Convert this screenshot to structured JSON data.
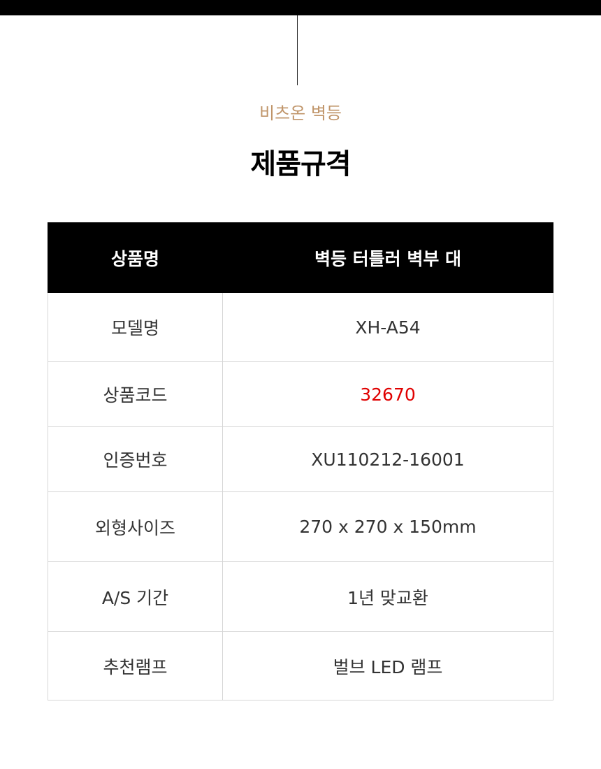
{
  "header": {
    "subtitle": "비츠온 벽등",
    "title": "제품규격"
  },
  "spec_table": {
    "header": {
      "label": "상품명",
      "value": "벽등 터틀러 벽부 대"
    },
    "rows": [
      {
        "label": "모델명",
        "value": "XH-A54"
      },
      {
        "label": "상품코드",
        "value": "32670"
      },
      {
        "label": "인증번호",
        "value": "XU110212-16001"
      },
      {
        "label": "외형사이즈",
        "value": "270 x 270 x 150mm"
      },
      {
        "label": "A/S 기간",
        "value": "1년 맞교환"
      },
      {
        "label": "추천램프",
        "value": "벌브 LED 램프"
      }
    ]
  },
  "colors": {
    "subtitle": "#c0956a",
    "product_code": "#e00000",
    "header_bg": "#000000"
  }
}
